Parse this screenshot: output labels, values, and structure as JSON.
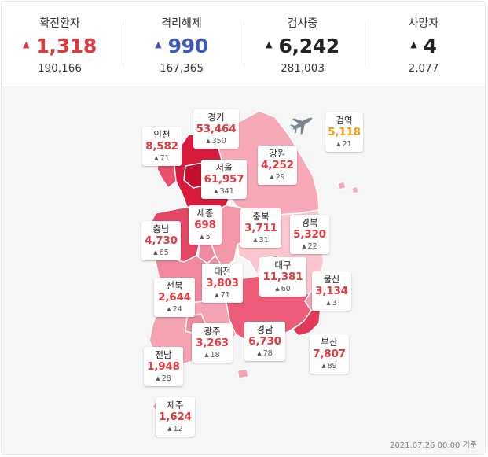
{
  "summary": [
    {
      "label": "확진환자",
      "value": "1,318",
      "total": "190,166",
      "arrow_color": "#e0393e",
      "value_color": "red"
    },
    {
      "label": "격리해제",
      "value": "990",
      "total": "167,365",
      "arrow_color": "#3d5ab8",
      "value_color": "blue"
    },
    {
      "label": "검사중",
      "value": "6,242",
      "total": "281,003",
      "arrow_color": "#222222",
      "value_color": "dark"
    },
    {
      "label": "사망자",
      "value": "4",
      "total": "2,077",
      "arrow_color": "#222222",
      "value_color": "dark"
    }
  ],
  "regions": {
    "gyeonggi": {
      "name": "경기",
      "value": "53,464",
      "delta": "350"
    },
    "incheon": {
      "name": "인천",
      "value": "8,582",
      "delta": "71"
    },
    "seoul": {
      "name": "서울",
      "value": "61,957",
      "delta": "341"
    },
    "gangwon": {
      "name": "강원",
      "value": "4,252",
      "delta": "29"
    },
    "quarantine": {
      "name": "검역",
      "value": "5,118",
      "delta": "21"
    },
    "sejong": {
      "name": "세종",
      "value": "698",
      "delta": "5"
    },
    "chungbuk": {
      "name": "충북",
      "value": "3,711",
      "delta": "31"
    },
    "gyeongbuk": {
      "name": "경북",
      "value": "5,320",
      "delta": "22"
    },
    "chungnam": {
      "name": "충남",
      "value": "4,730",
      "delta": "65"
    },
    "daejeon": {
      "name": "대전",
      "value": "3,803",
      "delta": "71"
    },
    "daegu": {
      "name": "대구",
      "value": "11,381",
      "delta": "60"
    },
    "ulsan": {
      "name": "울산",
      "value": "3,134",
      "delta": "3"
    },
    "jeonbuk": {
      "name": "전북",
      "value": "2,644",
      "delta": "24"
    },
    "gwangju": {
      "name": "광주",
      "value": "3,263",
      "delta": "18"
    },
    "gyeongnam": {
      "name": "경남",
      "value": "6,730",
      "delta": "78"
    },
    "busan": {
      "name": "부산",
      "value": "7,807",
      "delta": "89"
    },
    "jeonnam": {
      "name": "전남",
      "value": "1,948",
      "delta": "28"
    },
    "jeju": {
      "name": "제주",
      "value": "1,624",
      "delta": "12"
    }
  },
  "icons": {
    "up_arrow": "▲",
    "plane": "airplane-icon"
  },
  "footer": {
    "basis": "2021.07.26 00:00 기준"
  }
}
